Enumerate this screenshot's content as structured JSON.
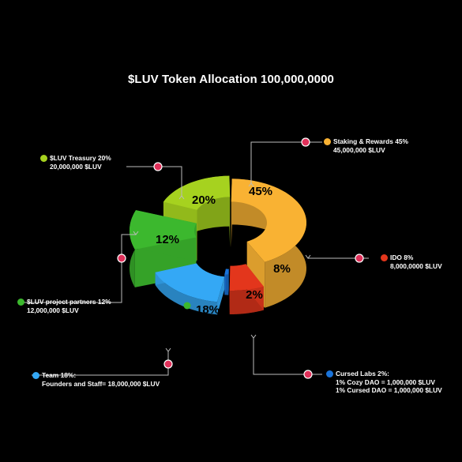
{
  "title": "$LUV Token Allocation 100,000,0000",
  "colors": {
    "background": "#000000",
    "connector": "#bbbbbb",
    "marker": "#e0305a"
  },
  "chart_data": {
    "type": "pie",
    "title": "$LUV Token Allocation 100,000,0000",
    "categories": [
      "Staking & Rewards",
      "IDO",
      "Cursed Labs",
      "Team",
      "$LUV project partners",
      "$LUV Treasury"
    ],
    "values": [
      45,
      8,
      2,
      18,
      12,
      20
    ],
    "data_labels": [
      "45%",
      "8%",
      "2%",
      "18%",
      "12%",
      "20%"
    ],
    "colors": [
      "#f9b233",
      "#e3361c",
      "#1a73d9",
      "#34a8f5",
      "#3cb82e",
      "#a6d21f"
    ],
    "legend": [
      {
        "id": "staking",
        "color": "#f9b233",
        "lines": [
          "Staking & Rewards 45%",
          "45,000,000 $LUV"
        ]
      },
      {
        "id": "ido",
        "color": "#e3361c",
        "lines": [
          "IDO 8%",
          "8,000,0000 $LUV"
        ]
      },
      {
        "id": "cursed-labs",
        "color": "#1a73d9",
        "lines": [
          "Cursed Labs 2%:",
          "1% Cozy DAO = 1,000,000 $LUV",
          "1% Cursed DAO = 1,000,000 $LUV"
        ]
      },
      {
        "id": "team",
        "color": "#34a8f5",
        "lines": [
          "Team 18%:",
          "Founders and Staff= 18,000,000 $LUV"
        ]
      },
      {
        "id": "partners",
        "color": "#3cb82e",
        "lines": [
          "$LUV project partners 12%",
          "12,000,000 $LUV"
        ]
      },
      {
        "id": "treasury",
        "color": "#a6d21f",
        "lines": [
          "$LUV Treasury 20%",
          "20,000,000 $LUV"
        ]
      }
    ]
  }
}
